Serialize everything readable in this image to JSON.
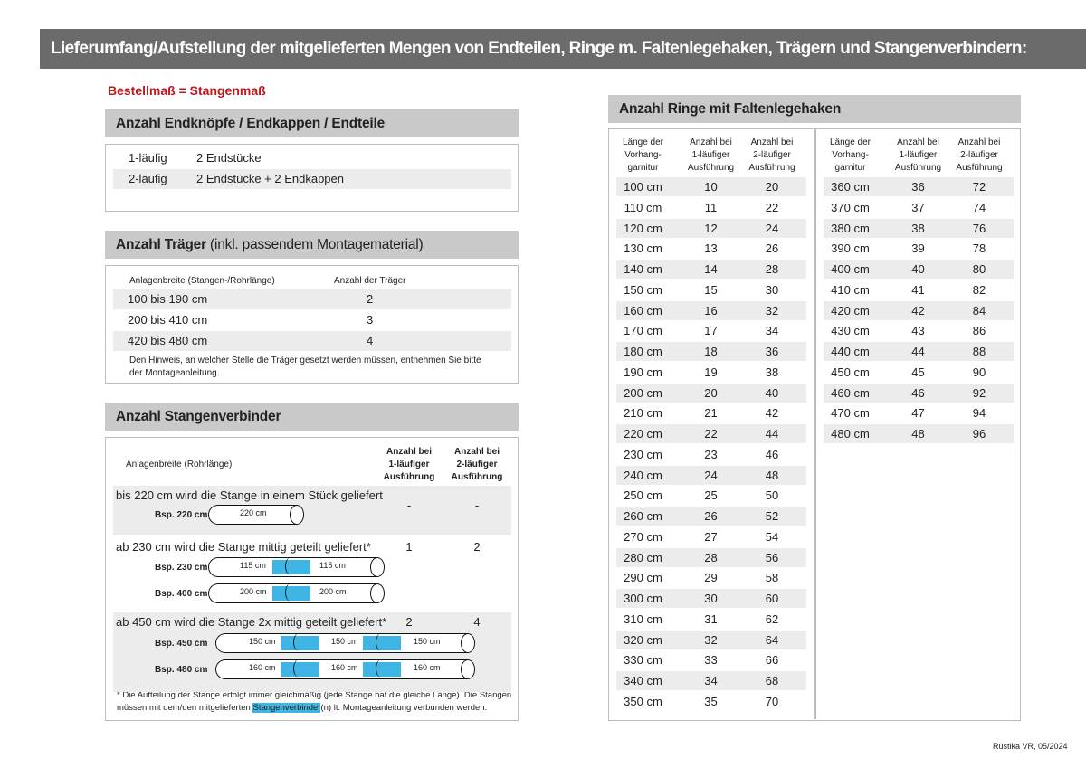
{
  "title": "Lieferumfang/Aufstellung der mitgelieferten Mengen von Endteilen, Ringe m. Faltenlegehaken, Trägern und Stangenverbindern:",
  "order_note": "Bestellmaß = Stangenmaß",
  "endteile": {
    "heading": "Anzahl Endknöpfe / Endkappen / Endteile",
    "rows": [
      {
        "type": "1-läufig",
        "value": "2 Endstücke"
      },
      {
        "type": "2-läufig",
        "value": "2 Endstücke + 2 Endkappen"
      }
    ]
  },
  "traeger": {
    "heading_bold": "Anzahl Träger",
    "heading_normal": "(inkl. passendem Montagematerial)",
    "col1": "Anlagenbreite (Stangen-/Rohrlänge)",
    "col2": "Anzahl der Träger",
    "rows": [
      {
        "range": "100 bis 190 cm",
        "count": "2"
      },
      {
        "range": "200 bis 410 cm",
        "count": "3"
      },
      {
        "range": "420 bis 480 cm",
        "count": "4"
      }
    ],
    "note1": "Den Hinweis, an welcher Stelle die Träger gesetzt werden müssen, entnehmen Sie bitte",
    "note2": "der Montageanleitung."
  },
  "verbinder": {
    "heading": "Anzahl Stangenverbinder",
    "col1": "Anlagenbreite (Rohrlänge)",
    "col2": [
      "Anzahl bei",
      "1-läufiger",
      "Ausführung"
    ],
    "col3": [
      "Anzahl bei",
      "2-läufiger",
      "Ausführung"
    ],
    "groups": [
      {
        "text": "bis 220 cm wird die Stange in einem Stück geliefert",
        "one": "-",
        "two": "-",
        "examples": [
          {
            "label": "Bsp. 220 cm",
            "parts": [
              "220 cm"
            ]
          }
        ]
      },
      {
        "text": "ab 230 cm wird die Stange mittig geteilt geliefert*",
        "one": "1",
        "two": "2",
        "examples": [
          {
            "label": "Bsp. 230 cm",
            "parts": [
              "115 cm",
              "115 cm"
            ]
          },
          {
            "label": "Bsp. 400 cm",
            "parts": [
              "200 cm",
              "200 cm"
            ]
          }
        ]
      },
      {
        "text": "ab 450 cm wird die Stange 2x mittig geteilt geliefert*",
        "one": "2",
        "two": "4",
        "examples": [
          {
            "label": "Bsp. 450 cm",
            "parts": [
              "150 cm",
              "150 cm",
              "150 cm"
            ]
          },
          {
            "label": "Bsp. 480 cm",
            "parts": [
              "160 cm",
              "160 cm",
              "160 cm"
            ]
          }
        ]
      }
    ],
    "footnote_a": "* Die Aufteilung der Stange erfolgt immer gleichmäßig (jede Stange hat die gleiche Länge). Die Stangen",
    "footnote_b": "müssen mit dem/den mitgelieferten ",
    "footnote_highlight": "Stangenverbinder",
    "footnote_c": "(n) lt. Montageanleitung verbunden werden."
  },
  "ringe": {
    "heading": "Anzahl Ringe mit Faltenlegehaken",
    "headers": [
      [
        "Länge der",
        "Vorhang-",
        "garnitur"
      ],
      [
        "Anzahl bei",
        "1-läufiger",
        "Ausführung"
      ],
      [
        "Anzahl bei",
        "2-läufiger",
        "Ausführung"
      ]
    ],
    "left": [
      [
        "100 cm",
        "10",
        "20"
      ],
      [
        "110 cm",
        "11",
        "22"
      ],
      [
        "120 cm",
        "12",
        "24"
      ],
      [
        "130 cm",
        "13",
        "26"
      ],
      [
        "140 cm",
        "14",
        "28"
      ],
      [
        "150 cm",
        "15",
        "30"
      ],
      [
        "160 cm",
        "16",
        "32"
      ],
      [
        "170 cm",
        "17",
        "34"
      ],
      [
        "180 cm",
        "18",
        "36"
      ],
      [
        "190 cm",
        "19",
        "38"
      ],
      [
        "200 cm",
        "20",
        "40"
      ],
      [
        "210 cm",
        "21",
        "42"
      ],
      [
        "220 cm",
        "22",
        "44"
      ],
      [
        "230 cm",
        "23",
        "46"
      ],
      [
        "240 cm",
        "24",
        "48"
      ],
      [
        "250 cm",
        "25",
        "50"
      ],
      [
        "260 cm",
        "26",
        "52"
      ],
      [
        "270 cm",
        "27",
        "54"
      ],
      [
        "280 cm",
        "28",
        "56"
      ],
      [
        "290 cm",
        "29",
        "58"
      ],
      [
        "300 cm",
        "30",
        "60"
      ],
      [
        "310 cm",
        "31",
        "62"
      ],
      [
        "320 cm",
        "32",
        "64"
      ],
      [
        "330 cm",
        "33",
        "66"
      ],
      [
        "340 cm",
        "34",
        "68"
      ],
      [
        "350 cm",
        "35",
        "70"
      ]
    ],
    "right": [
      [
        "360 cm",
        "36",
        "72"
      ],
      [
        "370 cm",
        "37",
        "74"
      ],
      [
        "380 cm",
        "38",
        "76"
      ],
      [
        "390 cm",
        "39",
        "78"
      ],
      [
        "400 cm",
        "40",
        "80"
      ],
      [
        "410 cm",
        "41",
        "82"
      ],
      [
        "420 cm",
        "42",
        "84"
      ],
      [
        "430 cm",
        "43",
        "86"
      ],
      [
        "440 cm",
        "44",
        "88"
      ],
      [
        "450 cm",
        "45",
        "90"
      ],
      [
        "460 cm",
        "46",
        "92"
      ],
      [
        "470 cm",
        "47",
        "94"
      ],
      [
        "480 cm",
        "48",
        "96"
      ]
    ]
  },
  "footer": "Rustika VR, 05/2024",
  "colors": {
    "header_bar": "#6b6b6b",
    "section": "#c9c9c9",
    "accent_red": "#c0161c",
    "connector_blue": "#3fb5e6"
  }
}
